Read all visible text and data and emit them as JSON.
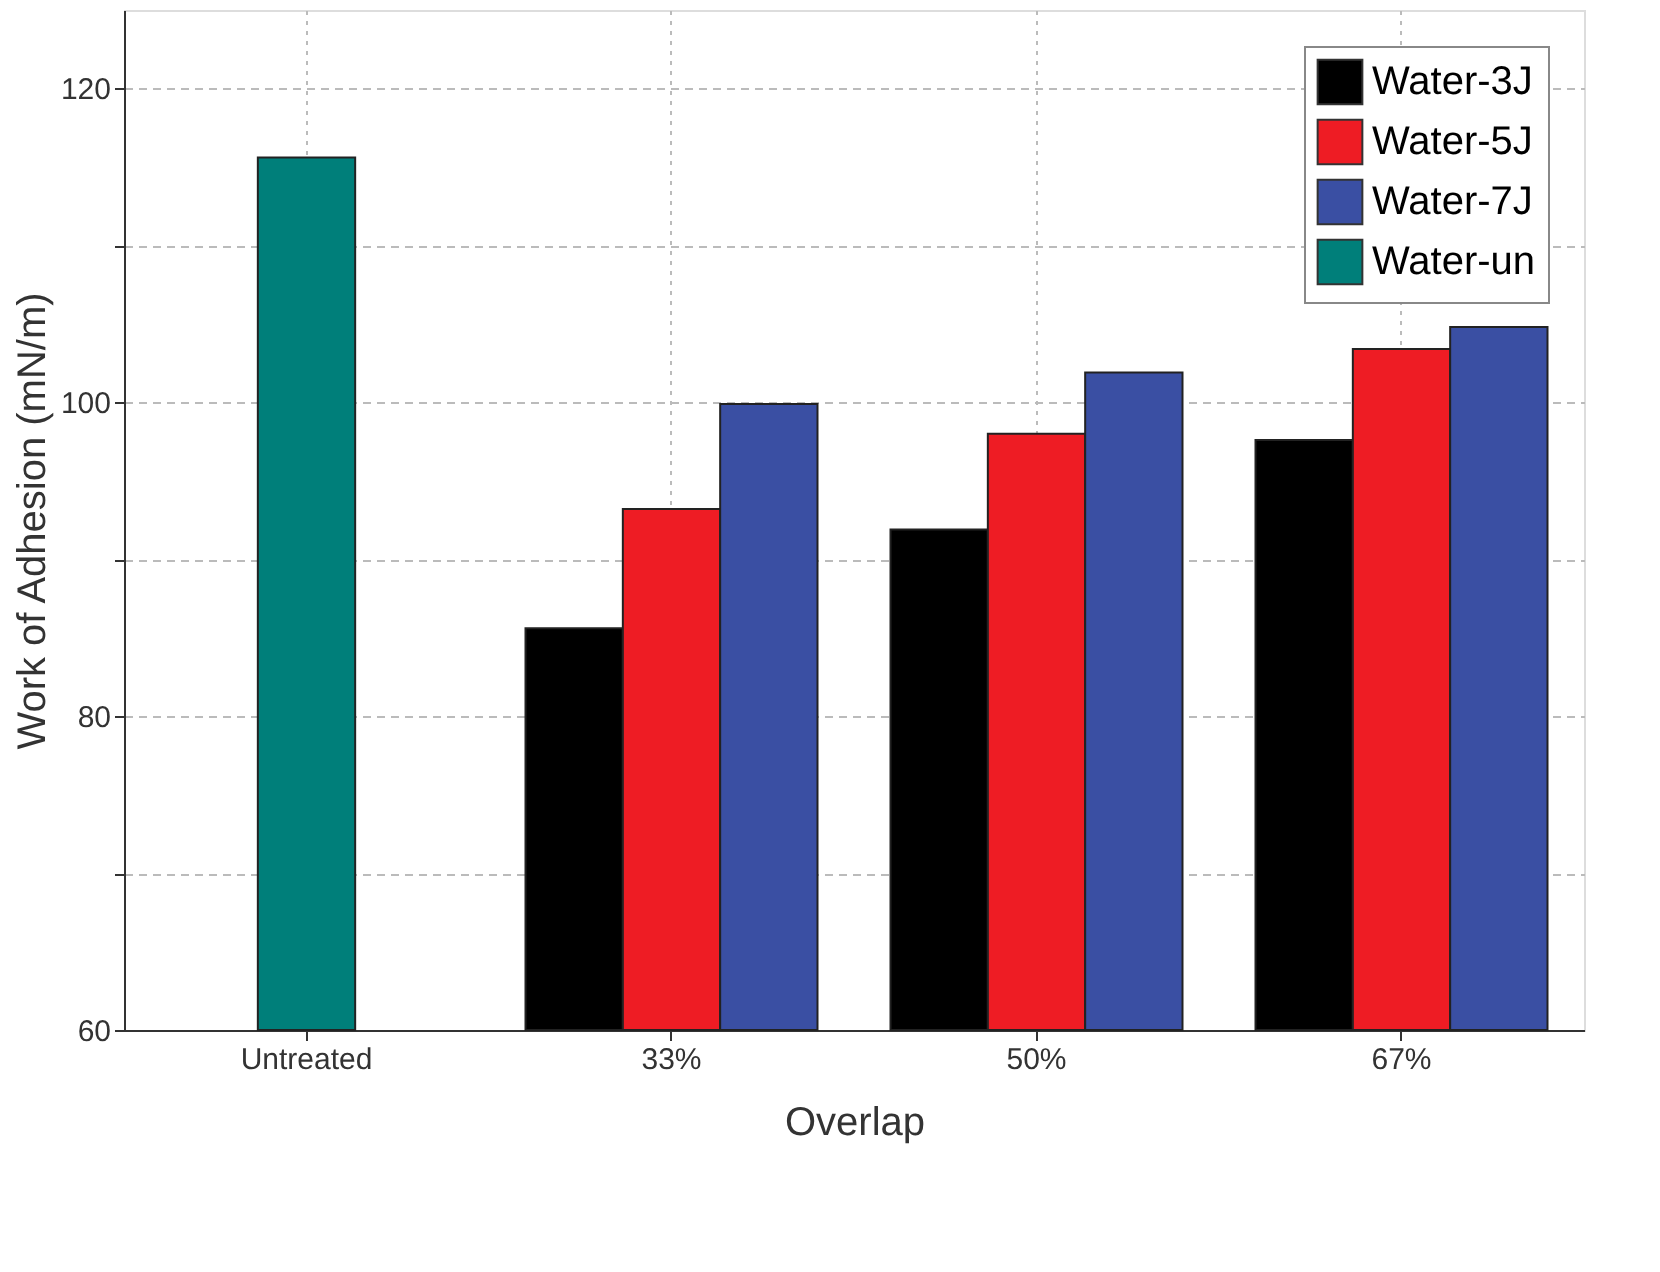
{
  "chart_data": {
    "type": "bar",
    "xlabel": "Overlap",
    "ylabel": "Work of Adhesion (mN/m)",
    "categories": [
      "Untreated",
      "33%",
      "50%",
      "67%"
    ],
    "series": [
      {
        "name": "Water-3J",
        "color": "#000000",
        "values": [
          null,
          85.6,
          91.9,
          97.6
        ]
      },
      {
        "name": "Water-5J",
        "color": "#ee1c24",
        "values": [
          null,
          93.2,
          98.0,
          103.4
        ]
      },
      {
        "name": "Water-7J",
        "color": "#3a4fa3",
        "values": [
          null,
          99.9,
          101.9,
          104.8
        ]
      },
      {
        "name": "Water-un",
        "color": "#007f7a",
        "values": [
          115.6,
          null,
          null,
          null
        ]
      }
    ],
    "ylim": [
      60,
      125
    ],
    "yticks": [
      60,
      {
        "value": 70,
        "label": null
      },
      80,
      {
        "value": 90,
        "label": null
      },
      100,
      {
        "value": 110,
        "label": null
      },
      120
    ],
    "grid": true,
    "legend": "top right"
  }
}
